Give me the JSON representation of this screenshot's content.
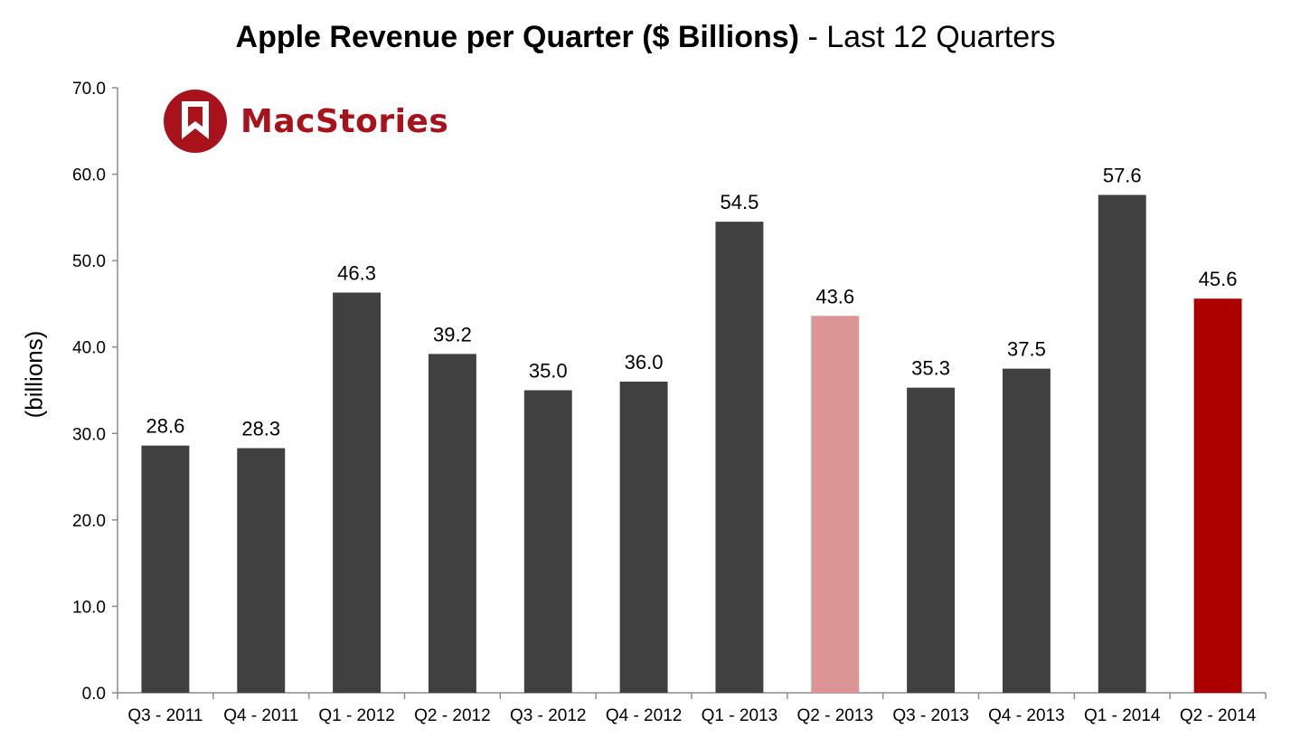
{
  "title": {
    "bold": "Apple Revenue per Quarter ($ Billions)",
    "regular": " - Last 12 Quarters"
  },
  "logo": {
    "text": "MacStories",
    "color": "#a8121b"
  },
  "chart_data": {
    "type": "bar",
    "title": "Apple Revenue per Quarter ($ Billions) - Last 12 Quarters",
    "xlabel": "",
    "ylabel": "(billions)",
    "ylim": [
      0,
      70
    ],
    "yticks": [
      "0.0",
      "10.0",
      "20.0",
      "30.0",
      "40.0",
      "50.0",
      "60.0",
      "70.0"
    ],
    "grid": false,
    "categories": [
      "Q3 - 2011",
      "Q4 - 2011",
      "Q1 - 2012",
      "Q2 - 2012",
      "Q3 - 2012",
      "Q4 - 2012",
      "Q1 - 2013",
      "Q2 - 2013",
      "Q3 - 2013",
      "Q4 - 2013",
      "Q1 - 2014",
      "Q2 - 2014"
    ],
    "values": [
      28.6,
      28.3,
      46.3,
      39.2,
      35.0,
      36.0,
      54.5,
      43.6,
      35.3,
      37.5,
      57.6,
      45.6
    ],
    "value_labels": [
      "28.6",
      "28.3",
      "46.3",
      "39.2",
      "35.0",
      "36.0",
      "54.5",
      "43.6",
      "35.3",
      "37.5",
      "57.6",
      "45.6"
    ],
    "bar_colors": [
      "#404040",
      "#404040",
      "#404040",
      "#404040",
      "#404040",
      "#404040",
      "#404040",
      "#da9594",
      "#404040",
      "#404040",
      "#404040",
      "#ac0000"
    ],
    "axis_color": "#8c8c8c"
  }
}
